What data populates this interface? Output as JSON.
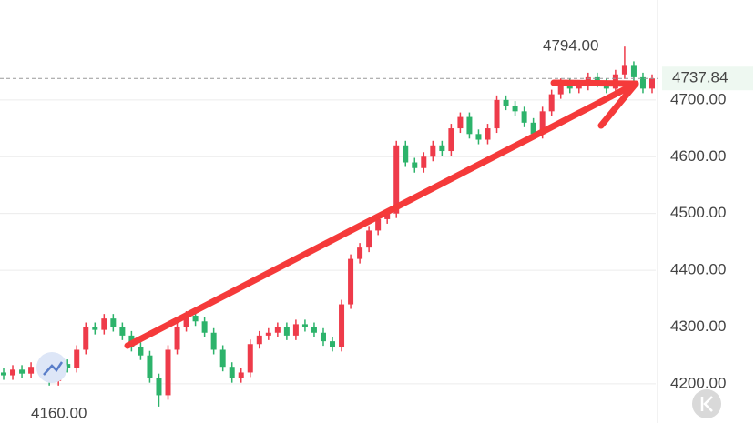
{
  "chart_data": {
    "type": "candlestick",
    "open": [
      4220,
      4215,
      4225,
      4218,
      4230,
      4222,
      4205,
      4235,
      4228,
      4260,
      4300,
      4295,
      4315,
      4300,
      4285,
      4265,
      4250,
      4210,
      4180,
      4260,
      4300,
      4320,
      4310,
      4290,
      4260,
      4230,
      4210,
      4220,
      4270,
      4285,
      4290,
      4300,
      4285,
      4305,
      4300,
      4290,
      4275,
      4265,
      4340,
      4420,
      4440,
      4470,
      4490,
      4500,
      4620,
      4590,
      4580,
      4600,
      4620,
      4610,
      4650,
      4670,
      4640,
      4630,
      4650,
      4700,
      4690,
      4680,
      4660,
      4640,
      4680,
      4710,
      4730,
      4720,
      4725,
      4740,
      4730,
      4720,
      4745,
      4760,
      4740,
      4720
    ],
    "high": [
      4228,
      4233,
      4233,
      4238,
      4238,
      4230,
      4243,
      4243,
      4268,
      4308,
      4308,
      4323,
      4323,
      4308,
      4293,
      4273,
      4258,
      4218,
      4268,
      4308,
      4328,
      4328,
      4318,
      4298,
      4268,
      4238,
      4228,
      4278,
      4293,
      4298,
      4308,
      4308,
      4313,
      4313,
      4308,
      4298,
      4283,
      4348,
      4428,
      4448,
      4478,
      4498,
      4508,
      4628,
      4628,
      4598,
      4608,
      4628,
      4628,
      4658,
      4678,
      4678,
      4648,
      4658,
      4708,
      4708,
      4698,
      4688,
      4668,
      4688,
      4718,
      4738,
      4738,
      4733,
      4748,
      4748,
      4738,
      4753,
      4794,
      4768,
      4748,
      4745
    ],
    "low": [
      4207,
      4207,
      4210,
      4210,
      4214,
      4197,
      4197,
      4220,
      4220,
      4252,
      4287,
      4287,
      4292,
      4277,
      4257,
      4242,
      4202,
      4160,
      4172,
      4252,
      4292,
      4302,
      4282,
      4252,
      4222,
      4202,
      4202,
      4212,
      4262,
      4277,
      4282,
      4277,
      4277,
      4292,
      4282,
      4267,
      4257,
      4257,
      4332,
      4412,
      4432,
      4462,
      4482,
      4492,
      4582,
      4572,
      4572,
      4592,
      4602,
      4602,
      4642,
      4632,
      4622,
      4622,
      4642,
      4682,
      4672,
      4652,
      4632,
      4632,
      4672,
      4702,
      4712,
      4712,
      4717,
      4722,
      4712,
      4712,
      4737,
      4732,
      4712,
      4712
    ],
    "close": [
      4215,
      4225,
      4218,
      4230,
      4222,
      4205,
      4235,
      4228,
      4260,
      4300,
      4295,
      4315,
      4300,
      4285,
      4265,
      4250,
      4210,
      4180,
      4260,
      4300,
      4320,
      4310,
      4290,
      4260,
      4230,
      4210,
      4220,
      4270,
      4285,
      4290,
      4300,
      4285,
      4305,
      4300,
      4290,
      4275,
      4265,
      4340,
      4420,
      4440,
      4470,
      4490,
      4500,
      4620,
      4590,
      4580,
      4600,
      4620,
      4610,
      4650,
      4670,
      4640,
      4630,
      4650,
      4700,
      4690,
      4680,
      4660,
      4640,
      4680,
      4710,
      4730,
      4720,
      4725,
      4740,
      4730,
      4720,
      4745,
      4760,
      4740,
      4720,
      4737.84
    ],
    "up_color": "#ee3b4a",
    "down_color": "#2db36b",
    "ylim": [
      4131,
      4876
    ],
    "yticks": [
      {
        "value": 4200,
        "label": "4200.00"
      },
      {
        "value": 4300,
        "label": "4300.00"
      },
      {
        "value": 4400,
        "label": "4400.00"
      },
      {
        "value": 4500,
        "label": "4500.00"
      },
      {
        "value": 4600,
        "label": "4600.00"
      },
      {
        "value": 4700,
        "label": "4700.00"
      }
    ],
    "grid": true,
    "last_price": 4737.84,
    "high_marker": {
      "value": 4794,
      "label": "4794.00"
    },
    "low_marker": {
      "value": 4160,
      "label": "4160.00"
    }
  }
}
